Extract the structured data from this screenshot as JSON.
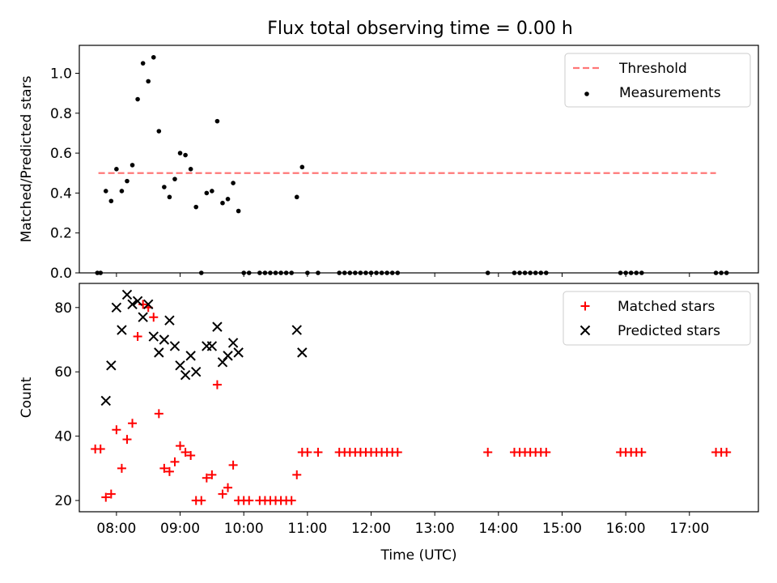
{
  "title": "Flux total observing time = 0.00 h",
  "chart_data": [
    {
      "type": "scatter",
      "ylabel": "Matched/Predicted stars",
      "xlabel": "",
      "xlim": [
        "07:25",
        "18:05"
      ],
      "ylim": [
        0,
        1.14
      ],
      "yticks": [
        {
          "v": 0.0,
          "label": "0.0"
        },
        {
          "v": 0.2,
          "label": "0.2"
        },
        {
          "v": 0.4,
          "label": "0.4"
        },
        {
          "v": 0.6,
          "label": "0.6"
        },
        {
          "v": 0.8,
          "label": "0.8"
        },
        {
          "v": 1.0,
          "label": "1.0"
        }
      ],
      "legend": {
        "position": "upper right",
        "entries": [
          "Threshold",
          "Measurements"
        ]
      },
      "series": [
        {
          "name": "Threshold",
          "kind": "dashed-line",
          "color": "#ff7777",
          "x": [
            "07:43",
            "17:25"
          ],
          "y": [
            0.5,
            0.5
          ]
        },
        {
          "name": "Measurements",
          "kind": "dot",
          "color": "#000000",
          "points": [
            [
              "07:42",
              0.0
            ],
            [
              "07:45",
              0.0
            ],
            [
              "07:50",
              0.41
            ],
            [
              "07:55",
              0.36
            ],
            [
              "08:00",
              0.52
            ],
            [
              "08:05",
              0.41
            ],
            [
              "08:10",
              0.46
            ],
            [
              "08:15",
              0.54
            ],
            [
              "08:20",
              0.87
            ],
            [
              "08:25",
              1.05
            ],
            [
              "08:30",
              0.96
            ],
            [
              "08:35",
              1.08
            ],
            [
              "08:40",
              0.71
            ],
            [
              "08:45",
              0.43
            ],
            [
              "08:50",
              0.38
            ],
            [
              "08:55",
              0.47
            ],
            [
              "09:00",
              0.6
            ],
            [
              "09:05",
              0.59
            ],
            [
              "09:10",
              0.52
            ],
            [
              "09:15",
              0.33
            ],
            [
              "09:20",
              0.0
            ],
            [
              "09:25",
              0.4
            ],
            [
              "09:30",
              0.41
            ],
            [
              "09:35",
              0.76
            ],
            [
              "09:40",
              0.35
            ],
            [
              "09:45",
              0.37
            ],
            [
              "09:50",
              0.45
            ],
            [
              "09:55",
              0.31
            ],
            [
              "10:00",
              0.0
            ],
            [
              "10:05",
              0.0
            ],
            [
              "10:15",
              0.0
            ],
            [
              "10:20",
              0.0
            ],
            [
              "10:25",
              0.0
            ],
            [
              "10:30",
              0.0
            ],
            [
              "10:35",
              0.0
            ],
            [
              "10:40",
              0.0
            ],
            [
              "10:45",
              0.0
            ],
            [
              "10:50",
              0.38
            ],
            [
              "10:55",
              0.53
            ],
            [
              "11:00",
              0.0
            ],
            [
              "11:10",
              0.0
            ],
            [
              "11:30",
              0.0
            ],
            [
              "11:35",
              0.0
            ],
            [
              "11:40",
              0.0
            ],
            [
              "11:45",
              0.0
            ],
            [
              "11:50",
              0.0
            ],
            [
              "11:55",
              0.0
            ],
            [
              "12:00",
              0.0
            ],
            [
              "12:05",
              0.0
            ],
            [
              "12:10",
              0.0
            ],
            [
              "12:15",
              0.0
            ],
            [
              "12:20",
              0.0
            ],
            [
              "12:25",
              0.0
            ],
            [
              "13:50",
              0.0
            ],
            [
              "14:15",
              0.0
            ],
            [
              "14:20",
              0.0
            ],
            [
              "14:25",
              0.0
            ],
            [
              "14:30",
              0.0
            ],
            [
              "14:35",
              0.0
            ],
            [
              "14:40",
              0.0
            ],
            [
              "14:45",
              0.0
            ],
            [
              "15:55",
              0.0
            ],
            [
              "16:00",
              0.0
            ],
            [
              "16:05",
              0.0
            ],
            [
              "16:10",
              0.0
            ],
            [
              "16:15",
              0.0
            ],
            [
              "17:25",
              0.0
            ],
            [
              "17:30",
              0.0
            ],
            [
              "17:35",
              0.0
            ]
          ]
        }
      ]
    },
    {
      "type": "scatter",
      "ylabel": "Count",
      "xlabel": "Time (UTC)",
      "xlim": [
        "07:25",
        "18:05"
      ],
      "ylim": [
        16.5,
        87.5
      ],
      "xticks": [
        {
          "v": "08:00",
          "label": "08:00"
        },
        {
          "v": "09:00",
          "label": "09:00"
        },
        {
          "v": "10:00",
          "label": "10:00"
        },
        {
          "v": "11:00",
          "label": "11:00"
        },
        {
          "v": "12:00",
          "label": "12:00"
        },
        {
          "v": "13:00",
          "label": "13:00"
        },
        {
          "v": "14:00",
          "label": "14:00"
        },
        {
          "v": "15:00",
          "label": "15:00"
        },
        {
          "v": "16:00",
          "label": "16:00"
        },
        {
          "v": "17:00",
          "label": "17:00"
        }
      ],
      "yticks": [
        {
          "v": 20,
          "label": "20"
        },
        {
          "v": 40,
          "label": "40"
        },
        {
          "v": 60,
          "label": "60"
        },
        {
          "v": 80,
          "label": "80"
        }
      ],
      "legend": {
        "position": "upper right",
        "entries": [
          "Matched stars",
          "Predicted stars"
        ]
      },
      "series": [
        {
          "name": "Matched stars",
          "kind": "plus",
          "color": "#ff0000",
          "points": [
            [
              "07:40",
              36
            ],
            [
              "07:45",
              36
            ],
            [
              "07:50",
              21
            ],
            [
              "07:55",
              22
            ],
            [
              "08:00",
              42
            ],
            [
              "08:05",
              30
            ],
            [
              "08:10",
              39
            ],
            [
              "08:15",
              44
            ],
            [
              "08:20",
              71
            ],
            [
              "08:25",
              81
            ],
            [
              "08:30",
              80
            ],
            [
              "08:35",
              77
            ],
            [
              "08:40",
              47
            ],
            [
              "08:45",
              30
            ],
            [
              "08:50",
              29
            ],
            [
              "08:55",
              32
            ],
            [
              "09:00",
              37
            ],
            [
              "09:05",
              35
            ],
            [
              "09:10",
              34
            ],
            [
              "09:15",
              20
            ],
            [
              "09:20",
              20
            ],
            [
              "09:25",
              27
            ],
            [
              "09:30",
              28
            ],
            [
              "09:35",
              56
            ],
            [
              "09:40",
              22
            ],
            [
              "09:45",
              24
            ],
            [
              "09:50",
              31
            ],
            [
              "09:55",
              20
            ],
            [
              "10:00",
              20
            ],
            [
              "10:05",
              20
            ],
            [
              "10:15",
              20
            ],
            [
              "10:20",
              20
            ],
            [
              "10:25",
              20
            ],
            [
              "10:30",
              20
            ],
            [
              "10:35",
              20
            ],
            [
              "10:40",
              20
            ],
            [
              "10:45",
              20
            ],
            [
              "10:50",
              28
            ],
            [
              "10:55",
              35
            ],
            [
              "11:00",
              35
            ],
            [
              "11:10",
              35
            ],
            [
              "11:30",
              35
            ],
            [
              "11:35",
              35
            ],
            [
              "11:40",
              35
            ],
            [
              "11:45",
              35
            ],
            [
              "11:50",
              35
            ],
            [
              "11:55",
              35
            ],
            [
              "12:00",
              35
            ],
            [
              "12:05",
              35
            ],
            [
              "12:10",
              35
            ],
            [
              "12:15",
              35
            ],
            [
              "12:20",
              35
            ],
            [
              "12:25",
              35
            ],
            [
              "13:50",
              35
            ],
            [
              "14:15",
              35
            ],
            [
              "14:20",
              35
            ],
            [
              "14:25",
              35
            ],
            [
              "14:30",
              35
            ],
            [
              "14:35",
              35
            ],
            [
              "14:40",
              35
            ],
            [
              "14:45",
              35
            ],
            [
              "15:55",
              35
            ],
            [
              "16:00",
              35
            ],
            [
              "16:05",
              35
            ],
            [
              "16:10",
              35
            ],
            [
              "16:15",
              35
            ],
            [
              "17:25",
              35
            ],
            [
              "17:30",
              35
            ],
            [
              "17:35",
              35
            ]
          ]
        },
        {
          "name": "Predicted stars",
          "kind": "x",
          "color": "#000000",
          "points": [
            [
              "07:50",
              51
            ],
            [
              "07:55",
              62
            ],
            [
              "08:00",
              80
            ],
            [
              "08:05",
              73
            ],
            [
              "08:10",
              84
            ],
            [
              "08:15",
              81
            ],
            [
              "08:20",
              82
            ],
            [
              "08:25",
              77
            ],
            [
              "08:30",
              81
            ],
            [
              "08:35",
              71
            ],
            [
              "08:40",
              66
            ],
            [
              "08:45",
              70
            ],
            [
              "08:50",
              76
            ],
            [
              "08:55",
              68
            ],
            [
              "09:00",
              62
            ],
            [
              "09:05",
              59
            ],
            [
              "09:10",
              65
            ],
            [
              "09:15",
              60
            ],
            [
              "09:25",
              68
            ],
            [
              "09:30",
              68
            ],
            [
              "09:35",
              74
            ],
            [
              "09:40",
              63
            ],
            [
              "09:45",
              65
            ],
            [
              "09:50",
              69
            ],
            [
              "09:55",
              66
            ],
            [
              "10:50",
              73
            ],
            [
              "10:55",
              66
            ]
          ]
        }
      ]
    }
  ]
}
